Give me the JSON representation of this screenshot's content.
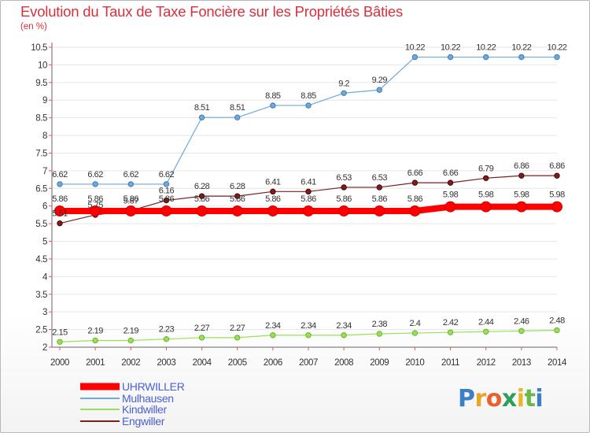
{
  "header": {
    "title": "Evolution du Taux de Taxe Foncière sur les Propriétés Bâties",
    "subtitle": "(en %)"
  },
  "logo": {
    "text": "Proxiti",
    "letter_colors": [
      "#3a7fc8",
      "#e8a52a",
      "#e8602a",
      "#2aa05a",
      "#e8b52a",
      "#6ab84a",
      "#3a7fc8"
    ]
  },
  "colors": {
    "UHRWILLER": "#ff0000",
    "Mulhausen": "#6fa8dc",
    "Kindwiller": "#99e05a",
    "Engwiller": "#7a1f1f",
    "axis_tick_marks": "#ff4a4a",
    "grid": "#e6e6e6",
    "legend_text": "#4a5fd0"
  },
  "chart_data": {
    "type": "line",
    "title": "Evolution du Taux de Taxe Foncière sur les Propriétés Bâties",
    "ylabel": "(en %)",
    "xlabel": "",
    "x": [
      2000,
      2001,
      2002,
      2003,
      2004,
      2005,
      2006,
      2007,
      2008,
      2009,
      2010,
      2011,
      2012,
      2013,
      2014
    ],
    "ylim": [
      2,
      10.5
    ],
    "yticks": [
      2,
      2.5,
      3,
      3.5,
      4,
      4.5,
      5,
      5.5,
      6,
      6.5,
      7,
      7.5,
      8,
      8.5,
      9,
      9.5,
      10,
      10.5
    ],
    "grid": "horizontal",
    "legend_position": "bottom-left",
    "series": [
      {
        "name": "UHRWILLER",
        "values": [
          5.86,
          5.86,
          5.86,
          5.86,
          5.86,
          5.86,
          5.86,
          5.86,
          5.86,
          5.86,
          5.86,
          5.98,
          5.98,
          5.98,
          5.98
        ],
        "labels": [
          "5.86",
          "5.86",
          "5.86",
          "5.86",
          "5.86",
          "5.86",
          "5.86",
          "5.86",
          "5.86",
          "5.86",
          "5.86",
          "5.98",
          "5.98",
          "5.98",
          "5.98"
        ]
      },
      {
        "name": "Mulhausen",
        "values": [
          6.62,
          6.62,
          6.62,
          6.62,
          8.51,
          8.51,
          8.85,
          8.85,
          9.2,
          9.29,
          10.22,
          10.22,
          10.22,
          10.22,
          10.22
        ],
        "labels": [
          "6.62",
          "6.62",
          "6.62",
          "6.62",
          "8.51",
          "8.51",
          "8.85",
          "8.85",
          "9.2",
          "9.29",
          "10.22",
          "10.22",
          "10.22",
          "10.22",
          "10.22"
        ]
      },
      {
        "name": "Kindwiller",
        "values": [
          2.15,
          2.19,
          2.19,
          2.23,
          2.27,
          2.27,
          2.34,
          2.34,
          2.34,
          2.38,
          2.4,
          2.42,
          2.44,
          2.46,
          2.48
        ],
        "labels": [
          "2.15",
          "2.19",
          "2.19",
          "2.23",
          "2.27",
          "2.27",
          "2.34",
          "2.34",
          "2.34",
          "2.38",
          "2.4",
          "2.42",
          "2.44",
          "2.46",
          "2.48"
        ]
      },
      {
        "name": "Engwiller",
        "values": [
          5.51,
          5.75,
          5.87,
          6.16,
          6.28,
          6.28,
          6.41,
          6.41,
          6.53,
          6.53,
          6.66,
          6.66,
          6.79,
          6.86,
          6.86
        ],
        "labels": [
          "5.51",
          "5.75",
          "5.87",
          "6.16",
          "6.28",
          "6.28",
          "6.41",
          "6.41",
          "6.53",
          "6.53",
          "6.66",
          "6.66",
          "6.79",
          "6.86",
          "6.86"
        ]
      }
    ]
  }
}
